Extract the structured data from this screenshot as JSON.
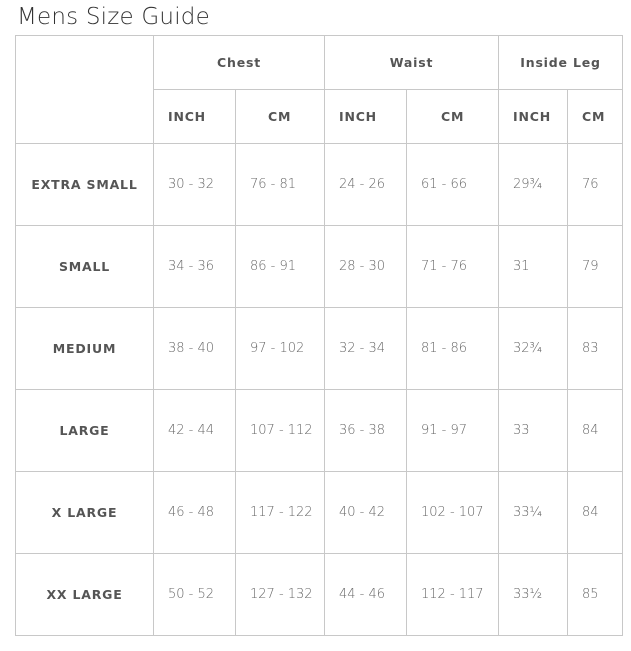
{
  "title": "Mens Size Guide",
  "groups": [
    "Chest",
    "Waist",
    "Inside Leg"
  ],
  "units": [
    "INCH",
    "CM",
    "INCH",
    "CM",
    "INCH",
    "CM"
  ],
  "rows": [
    {
      "size": "EXTRA SMALL",
      "values": [
        "30 - 32",
        "76 - 81",
        "24 - 26",
        "61 - 66",
        "29¾",
        "76"
      ]
    },
    {
      "size": "SMALL",
      "values": [
        "34 - 36",
        "86 - 91",
        "28 - 30",
        "71 - 76",
        "31",
        "79"
      ]
    },
    {
      "size": "MEDIUM",
      "values": [
        "38 - 40",
        "97 - 102",
        "32 - 34",
        "81 - 86",
        "32¾",
        "83"
      ]
    },
    {
      "size": "LARGE",
      "values": [
        "42 - 44",
        "107 - 112",
        "36 - 38",
        "91 - 97",
        "33",
        "84"
      ]
    },
    {
      "size": "X LARGE",
      "values": [
        "46 - 48",
        "117 - 122",
        "40 - 42",
        "102 - 107",
        "33¼",
        "84"
      ]
    },
    {
      "size": "XX LARGE",
      "values": [
        "50 - 52",
        "127 - 132",
        "44 - 46",
        "112 - 117",
        "33½",
        "85"
      ]
    }
  ]
}
